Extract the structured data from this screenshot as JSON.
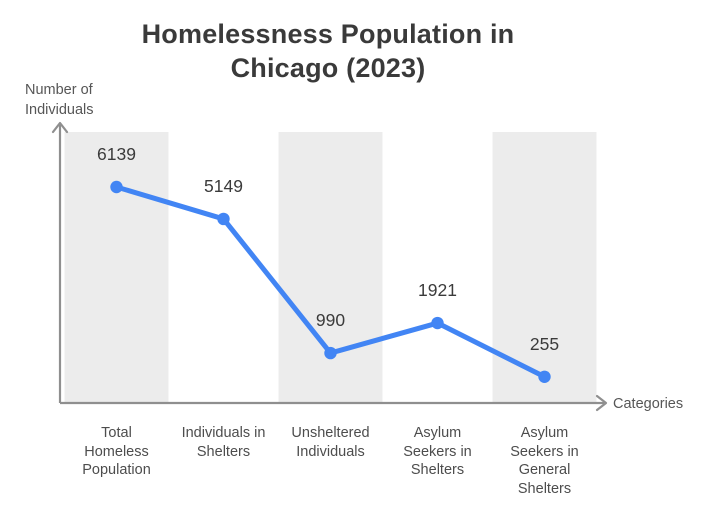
{
  "chart_data": {
    "type": "line",
    "title": "Homelessness Population in Chicago (2023)",
    "xlabel": "Categories",
    "ylabel": "Number of Individuals",
    "categories": [
      "Total Homeless Population",
      "Individuals in Shelters",
      "Unsheltered Individuals",
      "Asylum Seekers in Shelters",
      "Asylum Seekers in General Shelters"
    ],
    "categories_lines": [
      [
        "Total",
        "Homeless",
        "Population"
      ],
      [
        "Individuals in",
        "Shelters"
      ],
      [
        "Unsheltered",
        "Individuals"
      ],
      [
        "Asylum",
        "Seekers in",
        "Shelters"
      ],
      [
        "Asylum",
        "Seekers in",
        "General",
        "Shelters"
      ]
    ],
    "values": [
      6139,
      5149,
      990,
      1921,
      255
    ],
    "value_labels": [
      "6139",
      "5149",
      "990",
      "1921",
      "255"
    ],
    "ylim": [
      0,
      7800
    ],
    "grid": false,
    "legend": false,
    "shaded_categories": [
      0,
      2,
      4
    ],
    "colors": {
      "line": "#4285f4",
      "marker": "#4285f4",
      "band": "#ececec",
      "axis": "#8f8f8f",
      "title_text": "#3a3a3a",
      "value_text": "#3b3b3b",
      "category_text": "#4d4d4d",
      "axis_label_text": "#565656"
    }
  }
}
